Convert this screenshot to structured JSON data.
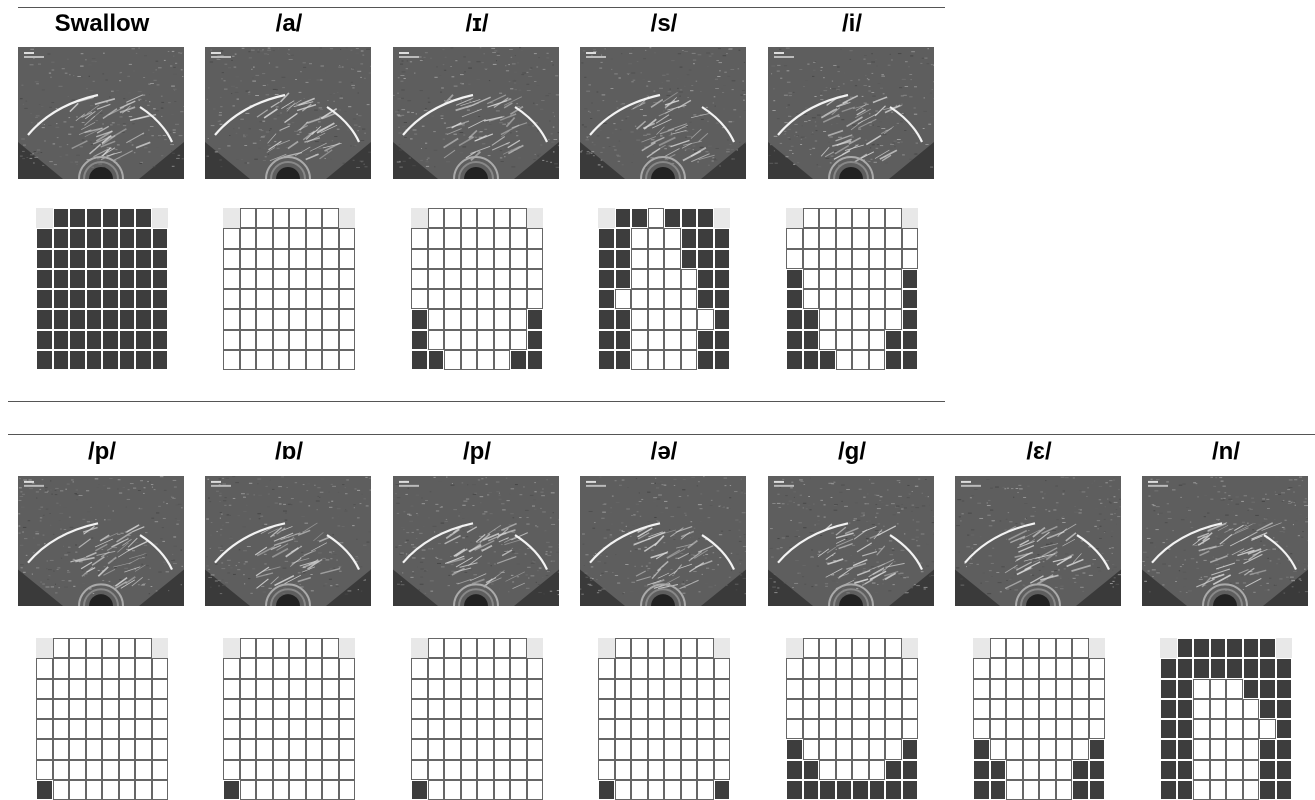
{
  "rows": [
    {
      "panels": [
        {
          "label": "Swallow",
          "grid": [
            "01111110",
            "11111111",
            "11111111",
            "11111111",
            "11111111",
            "11111111",
            "11111111",
            "11111111"
          ]
        },
        {
          "label": "/a/",
          "grid": [
            "00000000",
            "00000000",
            "00000000",
            "00000000",
            "00000000",
            "00000000",
            "00000000",
            "00000000"
          ]
        },
        {
          "label": "/ɪ/",
          "grid": [
            "00000000",
            "00000000",
            "00000000",
            "00000000",
            "00000000",
            "10000001",
            "10000001",
            "11000011"
          ]
        },
        {
          "label": "/s/",
          "grid": [
            "01101110",
            "11000111",
            "11000111",
            "11000011",
            "10000011",
            "11000001",
            "11000011",
            "11000011"
          ]
        },
        {
          "label": "/i/",
          "grid": [
            "00000000",
            "00000000",
            "00000000",
            "10000001",
            "10000001",
            "11000001",
            "11000011",
            "11100011"
          ]
        }
      ]
    },
    {
      "panels": [
        {
          "label": "/p/",
          "grid": [
            "00000000",
            "00000000",
            "00000000",
            "00000000",
            "00000000",
            "00000000",
            "00000000",
            "10000000"
          ]
        },
        {
          "label": "/ɒ/",
          "grid": [
            "00000000",
            "00000000",
            "00000000",
            "00000000",
            "00000000",
            "00000000",
            "00000000",
            "10000000"
          ]
        },
        {
          "label": "/p/",
          "grid": [
            "00000000",
            "00000000",
            "00000000",
            "00000000",
            "00000000",
            "00000000",
            "00000000",
            "10000000"
          ]
        },
        {
          "label": "/ə/",
          "grid": [
            "00000000",
            "00000000",
            "00000000",
            "00000000",
            "00000000",
            "00000000",
            "00000000",
            "10000001"
          ]
        },
        {
          "label": "/g/",
          "grid": [
            "00000000",
            "00000000",
            "00000000",
            "00000000",
            "00000000",
            "10000001",
            "11000011",
            "11111111"
          ]
        },
        {
          "label": "/ɛ/",
          "grid": [
            "00000000",
            "00000000",
            "00000000",
            "00000000",
            "00000000",
            "10000001",
            "11000011",
            "11000011"
          ]
        },
        {
          "label": "/n/",
          "grid": [
            "01111110",
            "11111111",
            "11000111",
            "11000011",
            "11000001",
            "11000011",
            "11000011",
            "11000011"
          ]
        }
      ]
    }
  ],
  "colors": {
    "electrode_contact": "#3d3d3d",
    "electrode_none": "#ffffff",
    "unused_corner": "#e8e8e8"
  }
}
